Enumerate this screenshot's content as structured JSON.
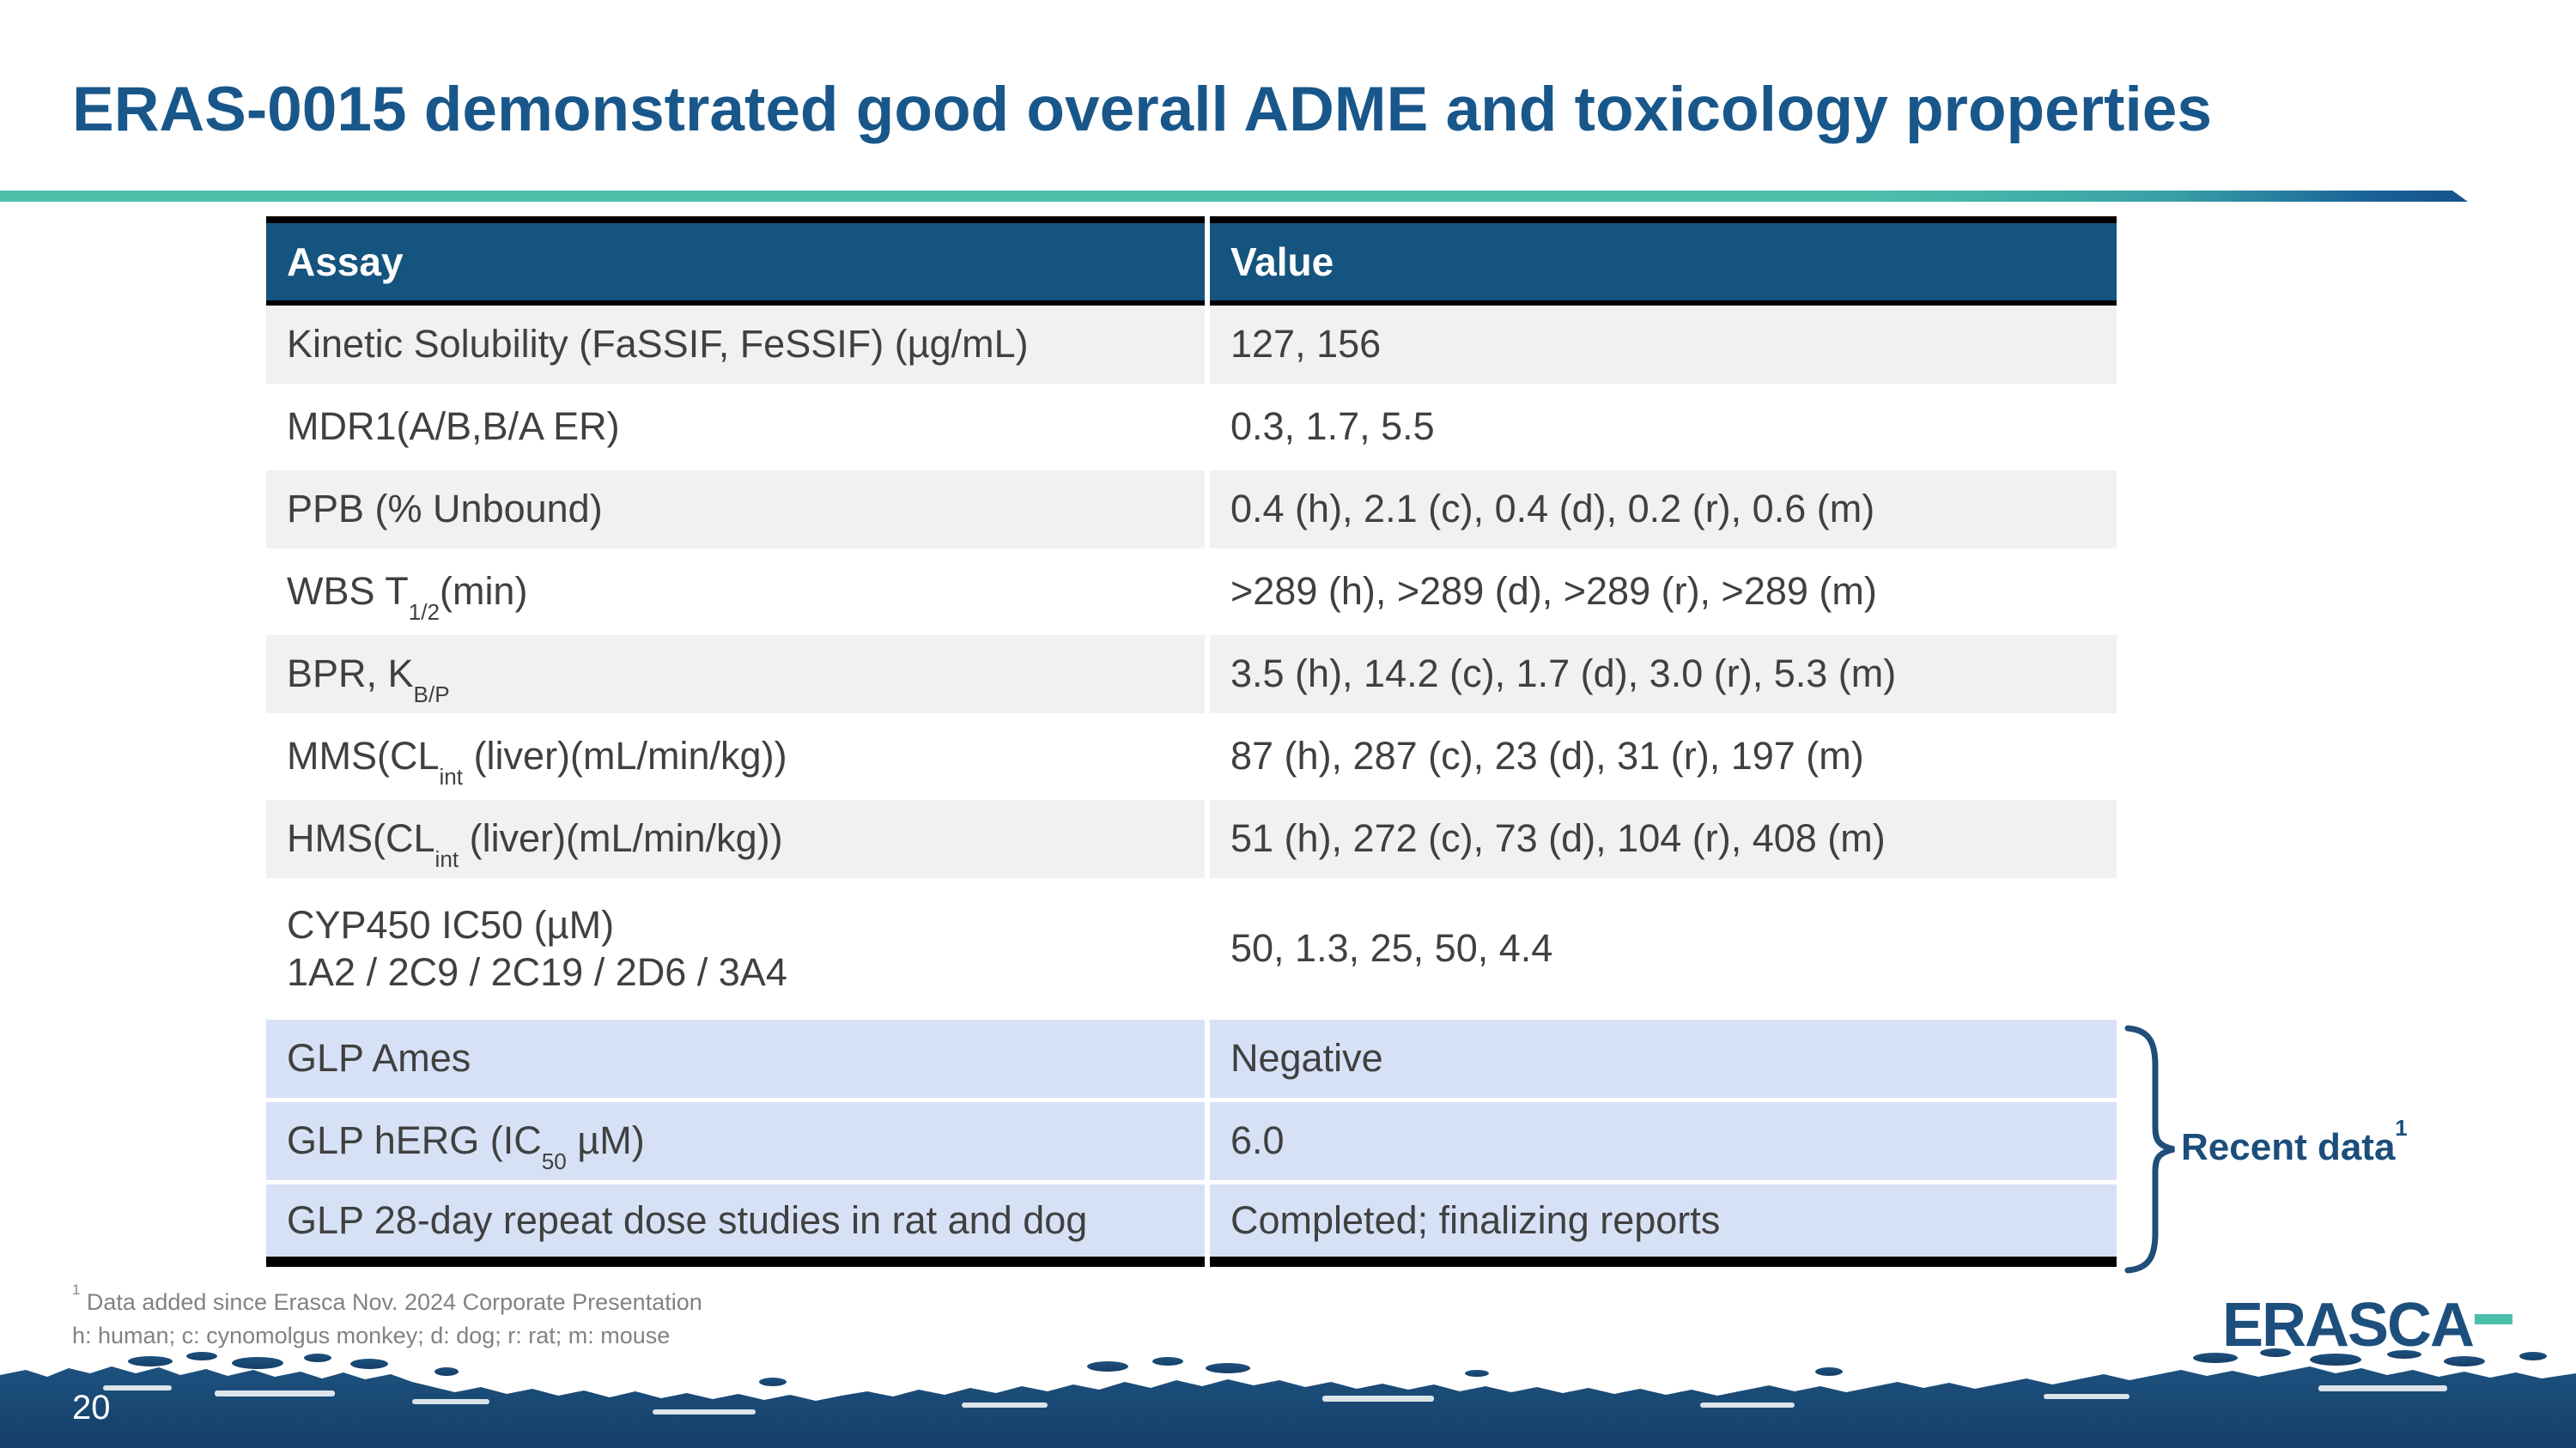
{
  "slide": {
    "title": "ERAS-0015 demonstrated good overall ADME and toxicology properties",
    "page_number": "20",
    "colors": {
      "title_blue": "#19578A",
      "header_blue": "#15547E",
      "accent_teal": "#4CBFAB",
      "brace_blue": "#1F4E79",
      "highlight_row": "#D7E1F6",
      "gray_row": "#F1F1F2",
      "footer_band_blue": "#1C4E7A"
    }
  },
  "table": {
    "headers": [
      "Assay",
      "Value"
    ],
    "rows": [
      {
        "assay": "Kinetic Solubility (FaSSIF, FeSSIF) (µg/mL)",
        "value": "127, 156"
      },
      {
        "assay": "MDR1(A/B,B/A ER)",
        "value": "0.3, 1.7, 5.5"
      },
      {
        "assay": "PPB (% Unbound)",
        "value": "0.4 (h), 2.1 (c), 0.4 (d), 0.2 (r), 0.6 (m)"
      },
      {
        "assay": "WBS T~1/2~(min)",
        "value": ">289 (h), >289 (d), >289 (r), >289 (m)"
      },
      {
        "assay": "BPR, K~B/P~",
        "value": "3.5 (h), 14.2 (c), 1.7 (d), 3.0 (r), 5.3 (m)"
      },
      {
        "assay": "MMS(CL~int~ (liver)(mL/min/kg))",
        "value": "87 (h), 287 (c), 23 (d), 31 (r), 197 (m)"
      },
      {
        "assay": "HMS(CL~int~ (liver)(mL/min/kg))",
        "value": "51 (h), 272 (c), 73 (d), 104 (r), 408 (m)"
      },
      {
        "assay": "CYP450 IC50 (µM)\n1A2 / 2C9 / 2C19 / 2D6 / 3A4",
        "value": "50, 1.3, 25, 50, 4.4"
      },
      {
        "assay": "GLP Ames",
        "value": "Negative"
      },
      {
        "assay": "GLP hERG (IC~50~ µM)",
        "value": "6.0"
      },
      {
        "assay": "GLP 28-day repeat dose studies in rat and dog",
        "value": "Completed; finalizing reports"
      }
    ]
  },
  "annotation": {
    "label": "Recent data^1^"
  },
  "footnotes": {
    "line1": "^1^ Data added since Erasca Nov. 2024 Corporate Presentation",
    "line2": "h: human; c: cynomolgus monkey; d: dog; r: rat; m: mouse"
  },
  "logo": {
    "text": "ERASCA"
  }
}
